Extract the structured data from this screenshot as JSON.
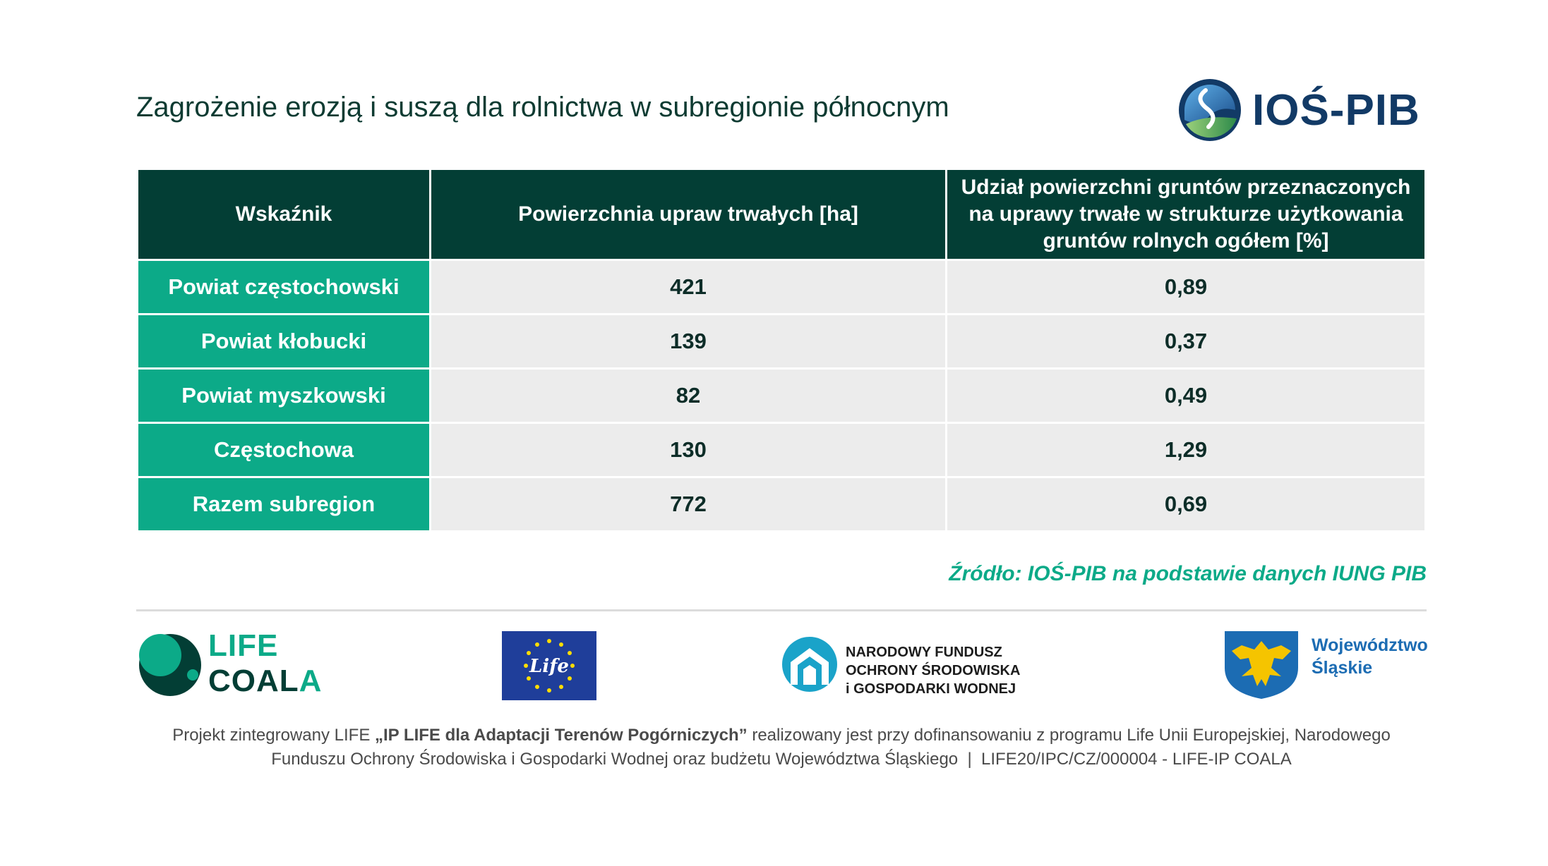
{
  "title": "Zagrożenie erozją i suszą dla rolnictwa w subregionie północnym",
  "brand": {
    "logo_text": "IOŚ-PIB",
    "accent": "#0caa88",
    "dark": "#033e35"
  },
  "table": {
    "headers": [
      "Wskaźnik",
      "Powierzchnia upraw trwałych [ha]",
      "Udział powierzchni gruntów przeznaczonych na uprawy trwałe w strukturze użytkowania gruntów rolnych ogółem [%]"
    ],
    "rows": [
      {
        "label": "Powiat częstochowski",
        "area": "421",
        "share": "0,89"
      },
      {
        "label": "Powiat kłobucki",
        "area": "139",
        "share": "0,37"
      },
      {
        "label": "Powiat myszkowski",
        "area": "82",
        "share": "0,49"
      },
      {
        "label": "Częstochowa",
        "area": "130",
        "share": "1,29"
      },
      {
        "label": "Razem subregion",
        "area": "772",
        "share": "0,69"
      }
    ]
  },
  "source": "Źródło: IOŚ-PIB na podstawie danych IUNG PIB",
  "logos": {
    "life_coala": {
      "line1": "LIFE",
      "line2_a": "COAL",
      "line2_b": "A"
    },
    "eu_life": "Life",
    "nfosigw": {
      "line1": "NARODOWY FUNDUSZ",
      "line2": "OCHRONY ŚRODOWISKA",
      "line3": "i GOSPODARKI WODNEJ"
    },
    "slaskie": {
      "line1": "Województwo",
      "line2": "Śląskie"
    }
  },
  "footer": {
    "p1": "Projekt zintegrowany LIFE ",
    "p2": "„IP LIFE dla Adaptacji Terenów Pogórniczych”",
    "p3": " realizowany jest przy dofinansowaniu z programu Life Unii Europejskiej, Narodowego",
    "line2": "Funduszu Ochrony Środowiska i Gospodarki Wodnej oraz budżetu Województwa Śląskiego  |  LIFE20/IPC/CZ/000004 - LIFE-IP COALA"
  }
}
